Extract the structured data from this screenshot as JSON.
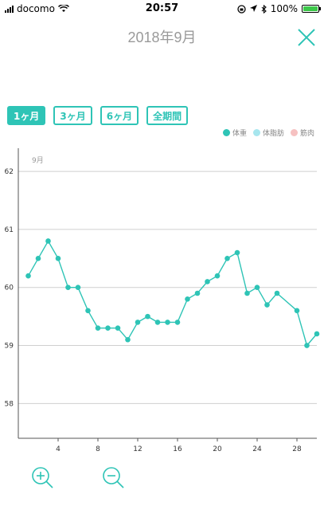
{
  "status_bar": {
    "carrier": "docomo",
    "time": "20:57",
    "battery": "100%"
  },
  "header": {
    "title": "2018年9月",
    "close_icon": "close-icon"
  },
  "range_tabs": [
    {
      "label": "1ヶ月",
      "active": true
    },
    {
      "label": "3ヶ月",
      "active": false
    },
    {
      "label": "6ヶ月",
      "active": false
    },
    {
      "label": "全期間",
      "active": false
    }
  ],
  "legend": [
    {
      "label": "体重",
      "color": "#2ec4b6"
    },
    {
      "label": "体脂肪",
      "color": "#a7e6ee"
    },
    {
      "label": "筋肉",
      "color": "#f6c1c1"
    }
  ],
  "zoom": {
    "zoom_in_icon": "zoom-in-icon",
    "zoom_out_icon": "zoom-out-icon"
  },
  "chart_data": {
    "type": "line",
    "month_label": "9月",
    "x": [
      1,
      2,
      3,
      4,
      5,
      6,
      7,
      8,
      9,
      10,
      11,
      12,
      13,
      14,
      15,
      16,
      17,
      18,
      19,
      20,
      21,
      22,
      23,
      24,
      25,
      26,
      28,
      29,
      30
    ],
    "series": [
      {
        "name": "体重",
        "color": "#2ec4b6",
        "values": [
          60.2,
          60.5,
          60.8,
          60.5,
          60.0,
          60.0,
          59.6,
          59.3,
          59.3,
          59.3,
          59.1,
          59.4,
          59.5,
          59.4,
          59.4,
          59.4,
          59.8,
          59.9,
          60.1,
          60.2,
          60.5,
          60.6,
          59.9,
          60.0,
          59.7,
          59.9,
          59.6,
          59.0,
          59.2
        ]
      }
    ],
    "xticks": [
      4,
      8,
      12,
      16,
      20,
      24,
      28
    ],
    "yticks": [
      58,
      59,
      60,
      61,
      62
    ],
    "xlim": [
      0,
      30
    ],
    "ylim": [
      57.4,
      62.4
    ],
    "grid": true
  }
}
